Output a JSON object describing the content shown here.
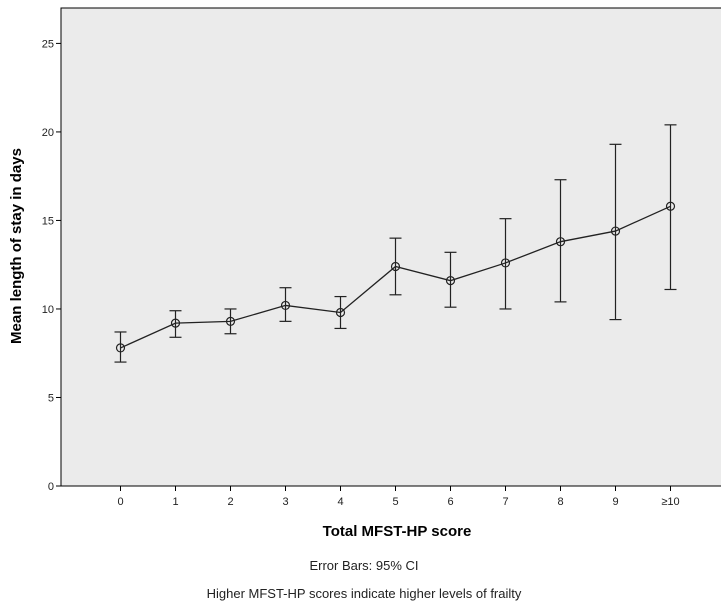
{
  "chart_data": {
    "type": "line",
    "categories": [
      "0",
      "1",
      "2",
      "3",
      "4",
      "5",
      "6",
      "7",
      "8",
      "9",
      "≥10"
    ],
    "values": [
      7.8,
      9.2,
      9.3,
      10.2,
      9.8,
      12.4,
      11.6,
      12.6,
      13.8,
      14.4,
      15.8
    ],
    "ci_lower": [
      7.0,
      8.4,
      8.6,
      9.3,
      8.9,
      10.8,
      10.1,
      10.0,
      10.4,
      9.4,
      11.1
    ],
    "ci_upper": [
      8.7,
      9.9,
      10.0,
      11.2,
      10.7,
      14.0,
      13.2,
      15.1,
      17.3,
      19.3,
      20.4
    ],
    "xlabel": "Total MFST-HP score",
    "ylabel": "Mean length of stay in days",
    "ylim": [
      0,
      27
    ],
    "yticks": [
      0,
      5,
      10,
      15,
      20,
      25
    ],
    "grid": false,
    "background": "#ebebeb",
    "line_color": "#222222",
    "notes": [
      "Error Bars: 95% CI",
      "Higher MFST-HP scores indicate higher levels of frailty"
    ]
  }
}
